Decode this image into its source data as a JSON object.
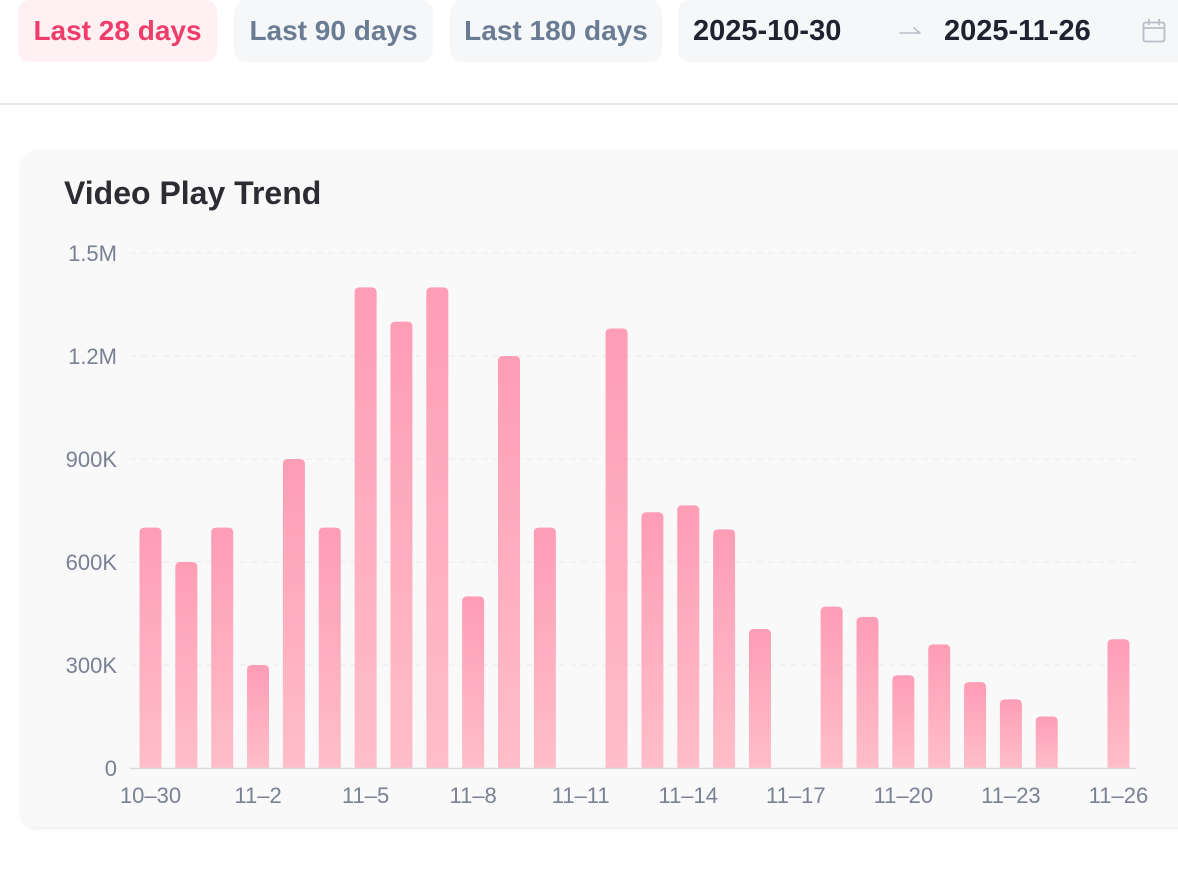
{
  "filters": {
    "ranges": [
      {
        "label": "Last 28 days",
        "active": true
      },
      {
        "label": "Last 90 days",
        "active": false
      },
      {
        "label": "Last 180 days",
        "active": false
      }
    ],
    "start_date": "2025-10-30",
    "end_date": "2025-11-26",
    "arrow_icon": "arrow-right-icon",
    "calendar_icon": "calendar-icon"
  },
  "colors": {
    "accent": "#ee3d6a",
    "bar_top": "#fe9db6",
    "bar_bottom": "#ffbec9"
  },
  "chart_data": {
    "type": "bar",
    "title": "Video Play Trend",
    "xlabel": "",
    "ylabel": "",
    "ylim": [
      0,
      1500000
    ],
    "yticks": [
      0,
      300000,
      600000,
      900000,
      1200000,
      1500000
    ],
    "ytick_labels": [
      "0",
      "300K",
      "600K",
      "900K",
      "1.2M",
      "1.5M"
    ],
    "categories": [
      "10-30",
      "10-31",
      "11-1",
      "11-2",
      "11-3",
      "11-4",
      "11-5",
      "11-6",
      "11-7",
      "11-8",
      "11-9",
      "11-10",
      "11-11",
      "11-12",
      "11-13",
      "11-14",
      "11-15",
      "11-16",
      "11-17",
      "11-18",
      "11-19",
      "11-20",
      "11-21",
      "11-22",
      "11-23",
      "11-24",
      "11-25",
      "11-26"
    ],
    "xtick_labels": [
      "10–30",
      "11–2",
      "11–5",
      "11–8",
      "11–11",
      "11–14",
      "11–17",
      "11–20",
      "11–23",
      "11–26"
    ],
    "xtick_indices": [
      0,
      3,
      6,
      9,
      12,
      15,
      18,
      21,
      24,
      27
    ],
    "values": [
      700000,
      600000,
      700000,
      300000,
      900000,
      700000,
      1400000,
      1300000,
      1400000,
      500000,
      1200000,
      700000,
      0,
      1280000,
      745000,
      765000,
      695000,
      405000,
      0,
      470000,
      440000,
      270000,
      360000,
      250000,
      200000,
      150000,
      0,
      375000
    ],
    "grid": true,
    "legend": "none"
  }
}
